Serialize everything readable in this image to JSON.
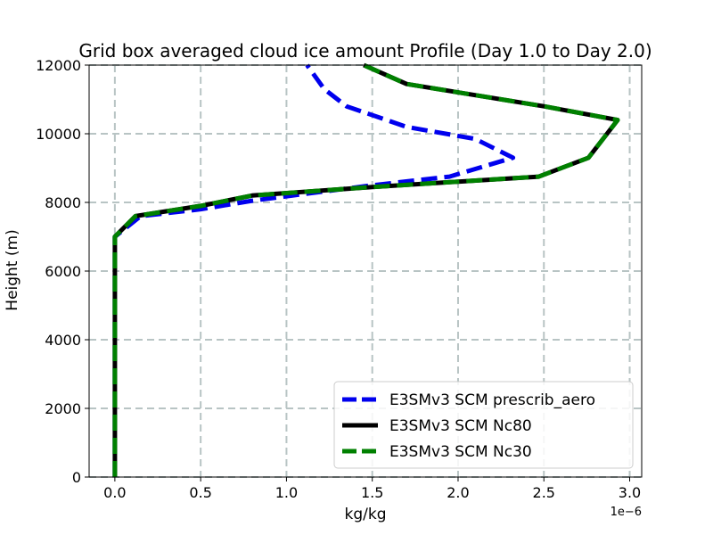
{
  "chart_data": {
    "type": "line",
    "title": "Grid box averaged cloud ice amount Profile (Day 1.0 to Day 2.0)",
    "xlabel": "kg/kg",
    "ylabel": "Height (m)",
    "x_offset_label": "1e−6",
    "xlim": [
      -0.15,
      3.07
    ],
    "ylim": [
      0,
      12000
    ],
    "xticks": [
      0.0,
      0.5,
      1.0,
      1.5,
      2.0,
      2.5,
      3.0
    ],
    "xtick_labels": [
      "0.0",
      "0.5",
      "1.0",
      "1.5",
      "2.0",
      "2.5",
      "3.0"
    ],
    "yticks": [
      0,
      2000,
      4000,
      6000,
      8000,
      10000,
      12000
    ],
    "ytick_labels": [
      "0",
      "2000",
      "4000",
      "6000",
      "8000",
      "10000",
      "12000"
    ],
    "grid": true,
    "legend_position": "lower-right",
    "series": [
      {
        "name": "E3SMv3 SCM prescrib_aero",
        "color": "#0000ee",
        "style": "dashed",
        "points": [
          [
            0,
            0
          ],
          [
            0,
            2000
          ],
          [
            0,
            4000
          ],
          [
            0,
            6000
          ],
          [
            0,
            7000
          ],
          [
            0.15,
            7600
          ],
          [
            0.5,
            7800
          ],
          [
            0.8,
            8050
          ],
          [
            1.5,
            8500
          ],
          [
            1.95,
            8750
          ],
          [
            2.32,
            9300
          ],
          [
            2.1,
            9850
          ],
          [
            1.7,
            10200
          ],
          [
            1.35,
            10800
          ],
          [
            1.22,
            11300
          ],
          [
            1.12,
            12000
          ]
        ]
      },
      {
        "name": "E3SMv3 SCM Nc80",
        "color": "#000000",
        "style": "solid",
        "points": [
          [
            0,
            0
          ],
          [
            0,
            2000
          ],
          [
            0,
            4000
          ],
          [
            0,
            6000
          ],
          [
            0,
            7000
          ],
          [
            0.12,
            7600
          ],
          [
            0.5,
            7900
          ],
          [
            0.8,
            8200
          ],
          [
            1.5,
            8450
          ],
          [
            2.47,
            8750
          ],
          [
            2.76,
            9300
          ],
          [
            2.93,
            10400
          ],
          [
            2.5,
            10800
          ],
          [
            1.7,
            11450
          ],
          [
            1.45,
            12000
          ]
        ]
      },
      {
        "name": "E3SMv3 SCM Nc30",
        "color": "#008000",
        "style": "dashed",
        "points": [
          [
            0,
            0
          ],
          [
            0,
            2000
          ],
          [
            0,
            4000
          ],
          [
            0,
            6000
          ],
          [
            0,
            7000
          ],
          [
            0.12,
            7600
          ],
          [
            0.5,
            7900
          ],
          [
            0.8,
            8200
          ],
          [
            1.5,
            8450
          ],
          [
            2.47,
            8750
          ],
          [
            2.76,
            9300
          ],
          [
            2.93,
            10400
          ],
          [
            2.5,
            10800
          ],
          [
            1.7,
            11450
          ],
          [
            1.45,
            12000
          ]
        ]
      }
    ]
  }
}
